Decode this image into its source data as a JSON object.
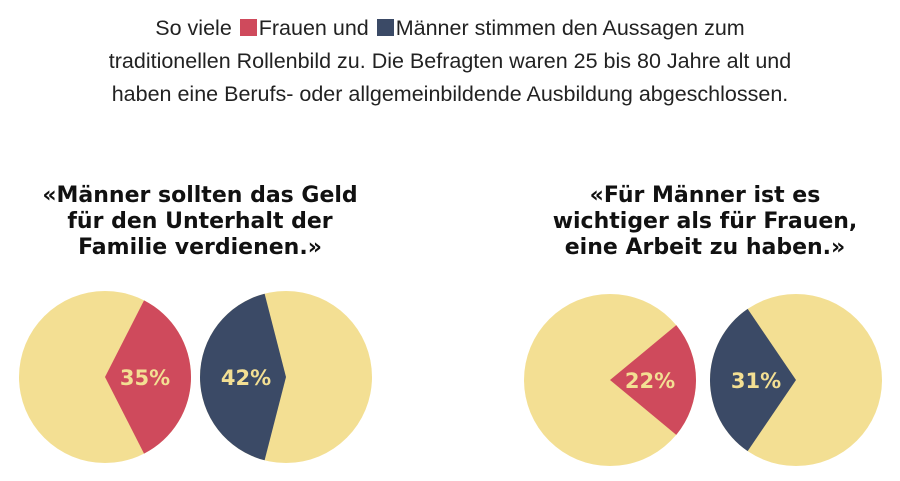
{
  "intro": {
    "part1": "So viele",
    "women": "Frauen",
    "part2": "und",
    "men": "Männer",
    "line1_rest": "stimmen den Aussagen zum",
    "line2": "traditionellen Rollenbild zu. Die Befragten waren 25 bis 80 Jahre alt und",
    "line3": "haben eine Berufs- oder allgemeinbildende Ausbildung abgeschlossen."
  },
  "colors": {
    "women": "#cf4a5c",
    "men": "#3b4a66",
    "rest": "#f3df93",
    "label": "#f3df93"
  },
  "chart_data": [
    {
      "type": "pie",
      "title": "«Männer sollten das Geld für den Unterhalt der Familie verdienen.»",
      "series_key": "women",
      "value": 35,
      "label": "35%"
    },
    {
      "type": "pie",
      "title": "«Männer sollten das Geld für den Unterhalt der Familie verdienen.»",
      "series_key": "men",
      "value": 42,
      "label": "42%"
    },
    {
      "type": "pie",
      "title": "«Für Männer ist es wichtiger als für Frauen, eine Arbeit zu haben.»",
      "series_key": "women",
      "value": 22,
      "label": "22%"
    },
    {
      "type": "pie",
      "title": "«Für Männer ist es wichtiger als für Frauen, eine Arbeit zu haben.»",
      "series_key": "men",
      "value": 31,
      "label": "31%"
    }
  ],
  "questions": [
    {
      "lines": [
        "«Männer sollten das Geld",
        "für den Unterhalt der",
        "Familie verdienen.»"
      ]
    },
    {
      "lines": [
        "«Für Männer ist es",
        "wichtiger als für Frauen,",
        "eine Arbeit zu haben.»"
      ]
    }
  ]
}
